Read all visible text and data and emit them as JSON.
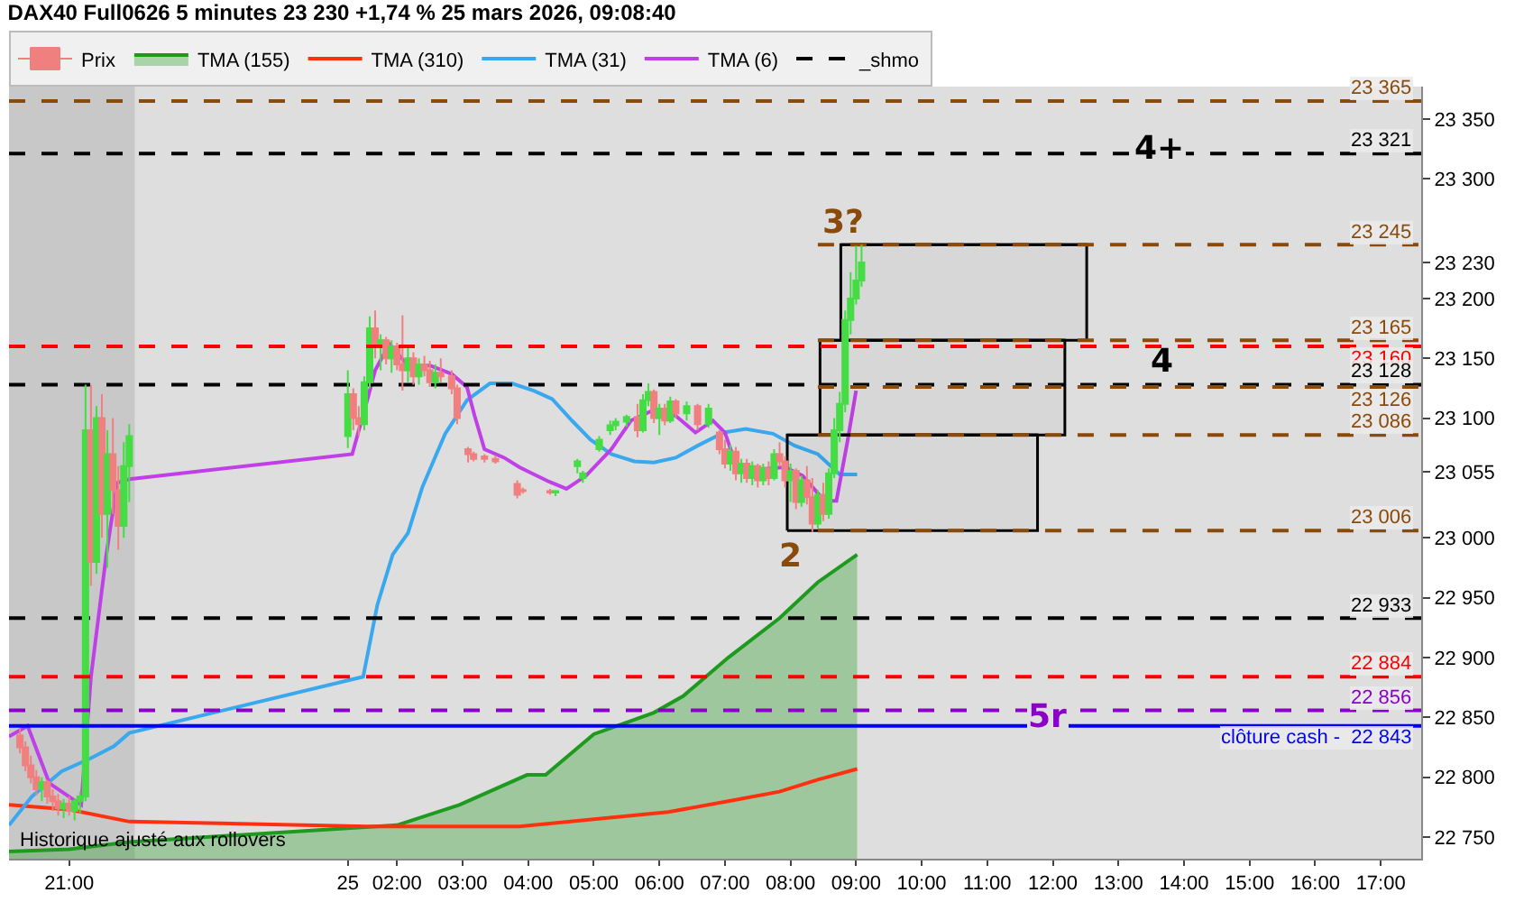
{
  "chart_data": {
    "type": "candlestick",
    "title": "DAX40 Full0626 5 minutes 23 230 +1,74 % 25 mars 2026, 09:08:40",
    "xlim": [
      "2026-03-24T20:05",
      "2026-03-25T17:37"
    ],
    "xticks": [
      {
        "value": "2026-03-24T21:00",
        "label": "21:00"
      },
      {
        "value": "2026-03-25T01:15",
        "label": "25"
      },
      {
        "value": "2026-03-25T02:00",
        "label": "02:00"
      },
      {
        "value": "2026-03-25T03:00",
        "label": "03:00"
      },
      {
        "value": "2026-03-25T04:00",
        "label": "04:00"
      },
      {
        "value": "2026-03-25T05:00",
        "label": "05:00"
      },
      {
        "value": "2026-03-25T06:00",
        "label": "06:00"
      },
      {
        "value": "2026-03-25T07:00",
        "label": "07:00"
      },
      {
        "value": "2026-03-25T08:00",
        "label": "08:00"
      },
      {
        "value": "2026-03-25T09:00",
        "label": "09:00"
      },
      {
        "value": "2026-03-25T10:00",
        "label": "10:00"
      },
      {
        "value": "2026-03-25T11:00",
        "label": "11:00"
      },
      {
        "value": "2026-03-25T12:00",
        "label": "12:00"
      },
      {
        "value": "2026-03-25T13:00",
        "label": "13:00"
      },
      {
        "value": "2026-03-25T14:00",
        "label": "14:00"
      },
      {
        "value": "2026-03-25T15:00",
        "label": "15:00"
      },
      {
        "value": "2026-03-25T16:00",
        "label": "16:00"
      },
      {
        "value": "2026-03-25T17:00",
        "label": "17:00"
      }
    ],
    "ylim": [
      22732,
      23377
    ],
    "yticks": [
      {
        "value": 22750,
        "label": "22 750"
      },
      {
        "value": 22800,
        "label": "22 800"
      },
      {
        "value": 22850,
        "label": "22 850"
      },
      {
        "value": 22900,
        "label": "22 900"
      },
      {
        "value": 22950,
        "label": "22 950"
      },
      {
        "value": 23000,
        "label": "23 000"
      },
      {
        "value": 23055,
        "label": "23 055"
      },
      {
        "value": 23100,
        "label": "23 100"
      },
      {
        "value": 23150,
        "label": "23 150"
      },
      {
        "value": 23200,
        "label": "23 200"
      },
      {
        "value": 23230,
        "label": "23 230"
      },
      {
        "value": 23300,
        "label": "23 300"
      },
      {
        "value": 23350,
        "label": "23 350"
      }
    ],
    "grid": false,
    "legend": "top left",
    "series": [
      {
        "name": "Prix",
        "type": "candlestick",
        "colors": [
          "#f08080",
          "#f08080",
          "#f08080",
          "#f08080",
          "#44dd44",
          "#f08080",
          "#f08080",
          "#f08080",
          "#44dd44",
          "#f08080",
          "#44dd44",
          "#44dd44",
          "#44dd44",
          "#f08080",
          "#44dd44",
          "#f08080",
          "#44dd44",
          "#f08080",
          "#f08080",
          "#44dd44",
          "#44dd44",
          "#44dd44",
          "#f08080",
          "#f08080",
          "#44dd44",
          "#44dd44",
          "#f08080",
          "#44dd44",
          "#f08080",
          "#44dd44",
          "#f08080",
          "#f08080",
          "#44dd44",
          "#f08080",
          "#44dd44",
          "#f08080",
          "#f08080",
          "#44dd44",
          "#f08080",
          "#f08080",
          "#f08080",
          "#f08080",
          "#f08080",
          "#f08080",
          "#f08080",
          "#f08080",
          "#f08080",
          "#f08080",
          "#44dd44",
          "#44dd44",
          "#44dd44",
          "#44dd44",
          "#44dd44",
          "#44dd44",
          "#44dd44",
          "#f08080",
          "#44dd44",
          "#44dd44",
          "#f08080",
          "#44dd44",
          "#f08080",
          "#44dd44",
          "#f08080",
          "#44dd44",
          "#f08080",
          "#44dd44",
          "#f08080",
          "#f08080",
          "#44dd44",
          "#f08080",
          "#44dd44",
          "#f08080",
          "#44dd44",
          "#f08080",
          "#44dd44",
          "#f08080",
          "#44dd44",
          "#f08080",
          "#f08080",
          "#44dd44",
          "#f08080",
          "#44dd44",
          "#f08080",
          "#f08080",
          "#44dd44",
          "#f08080",
          "#44dd44",
          "#44dd44",
          "#44dd44",
          "#44dd44",
          "#44dd44",
          "#44dd44",
          "#44dd44"
        ],
        "x": [
          "2026-03-24T20:15",
          "2026-03-24T20:20",
          "2026-03-24T20:25",
          "2026-03-24T20:30",
          "2026-03-24T20:35",
          "2026-03-24T20:40",
          "2026-03-24T20:45",
          "2026-03-24T20:50",
          "2026-03-24T20:55",
          "2026-03-24T21:00",
          "2026-03-24T21:05",
          "2026-03-24T21:10",
          "2026-03-24T21:15",
          "2026-03-24T21:20",
          "2026-03-24T21:25",
          "2026-03-24T21:30",
          "2026-03-24T21:35",
          "2026-03-24T21:40",
          "2026-03-24T21:45",
          "2026-03-24T21:50",
          "2026-03-24T21:55",
          "2026-03-25T01:15",
          "2026-03-25T01:20",
          "2026-03-25T01:25",
          "2026-03-25T01:30",
          "2026-03-25T01:35",
          "2026-03-25T01:40",
          "2026-03-25T01:45",
          "2026-03-25T01:50",
          "2026-03-25T01:55",
          "2026-03-25T02:00",
          "2026-03-25T02:05",
          "2026-03-25T02:10",
          "2026-03-25T02:15",
          "2026-03-25T02:20",
          "2026-03-25T02:25",
          "2026-03-25T02:30",
          "2026-03-25T02:35",
          "2026-03-25T02:40",
          "2026-03-25T02:50",
          "2026-03-25T02:55",
          "2026-03-25T03:05",
          "2026-03-25T03:10",
          "2026-03-25T03:20",
          "2026-03-25T03:30",
          "2026-03-25T03:50",
          "2026-03-25T03:55",
          "2026-03-25T04:20",
          "2026-03-25T04:25",
          "2026-03-25T04:45",
          "2026-03-25T04:50",
          "2026-03-25T05:05",
          "2026-03-25T05:15",
          "2026-03-25T05:20",
          "2026-03-25T05:30",
          "2026-03-25T05:40",
          "2026-03-25T05:45",
          "2026-03-25T05:50",
          "2026-03-25T05:55",
          "2026-03-25T06:00",
          "2026-03-25T06:05",
          "2026-03-25T06:10",
          "2026-03-25T06:15",
          "2026-03-25T06:25",
          "2026-03-25T06:35",
          "2026-03-25T06:45",
          "2026-03-25T06:55",
          "2026-03-25T07:00",
          "2026-03-25T07:05",
          "2026-03-25T07:10",
          "2026-03-25T07:15",
          "2026-03-25T07:20",
          "2026-03-25T07:25",
          "2026-03-25T07:30",
          "2026-03-25T07:35",
          "2026-03-25T07:40",
          "2026-03-25T07:45",
          "2026-03-25T07:50",
          "2026-03-25T07:55",
          "2026-03-25T08:00",
          "2026-03-25T08:05",
          "2026-03-25T08:10",
          "2026-03-25T08:15",
          "2026-03-25T08:20",
          "2026-03-25T08:25",
          "2026-03-25T08:30",
          "2026-03-25T08:35",
          "2026-03-25T08:40",
          "2026-03-25T08:45",
          "2026-03-25T08:50",
          "2026-03-25T08:55",
          "2026-03-25T09:00",
          "2026-03-25T09:05"
        ],
        "ohlc": [
          [
            22835,
            22842,
            22820,
            22825
          ],
          [
            22825,
            22830,
            22805,
            22810
          ],
          [
            22810,
            22818,
            22795,
            22800
          ],
          [
            22800,
            22806,
            22785,
            22790
          ],
          [
            22790,
            22800,
            22780,
            22796
          ],
          [
            22796,
            22798,
            22778,
            22784
          ],
          [
            22784,
            22790,
            22772,
            22780
          ],
          [
            22780,
            22786,
            22768,
            22774
          ],
          [
            22774,
            22782,
            22766,
            22778
          ],
          [
            22778,
            22784,
            22768,
            22772
          ],
          [
            22772,
            22782,
            22764,
            22780
          ],
          [
            22780,
            22788,
            22770,
            22784
          ],
          [
            22784,
            23128,
            22780,
            23090
          ],
          [
            23090,
            23128,
            22960,
            22980
          ],
          [
            22980,
            23110,
            22970,
            23100
          ],
          [
            23100,
            23120,
            23000,
            23020
          ],
          [
            23020,
            23090,
            22975,
            23070
          ],
          [
            23070,
            23100,
            23020,
            23040
          ],
          [
            23040,
            23060,
            22990,
            23010
          ],
          [
            23010,
            23080,
            23000,
            23060
          ],
          [
            23060,
            23095,
            23030,
            23085
          ],
          [
            23085,
            23140,
            23075,
            23120
          ],
          [
            23120,
            23125,
            23090,
            23100
          ],
          [
            23100,
            23110,
            23085,
            23095
          ],
          [
            23095,
            23135,
            23090,
            23130
          ],
          [
            23130,
            23185,
            23125,
            23175
          ],
          [
            23175,
            23190,
            23150,
            23160
          ],
          [
            23160,
            23170,
            23140,
            23165
          ],
          [
            23165,
            23168,
            23145,
            23150
          ],
          [
            23150,
            23165,
            23138,
            23160
          ],
          [
            23160,
            23163,
            23140,
            23145
          ],
          [
            23145,
            23186,
            23123,
            23140
          ],
          [
            23140,
            23160,
            23130,
            23150
          ],
          [
            23150,
            23155,
            23128,
            23135
          ],
          [
            23135,
            23150,
            23128,
            23145
          ],
          [
            23145,
            23152,
            23135,
            23140
          ],
          [
            23140,
            23148,
            23126,
            23130
          ],
          [
            23130,
            23145,
            23125,
            23138
          ],
          [
            23138,
            23150,
            23130,
            23135
          ],
          [
            23135,
            23140,
            23120,
            23125
          ],
          [
            23125,
            23128,
            23095,
            23100
          ],
          [
            23074,
            23076,
            23063,
            23070
          ],
          [
            23070,
            23072,
            23064,
            23066
          ],
          [
            23068,
            23070,
            23063,
            23066
          ],
          [
            23066,
            23069,
            23062,
            23064
          ],
          [
            23045,
            23048,
            23033,
            23036
          ],
          [
            23040,
            23042,
            23037,
            23039
          ],
          [
            23039,
            23041,
            23036,
            23038
          ],
          [
            23038,
            23040,
            23035,
            23039
          ],
          [
            23060,
            23066,
            23054,
            23064
          ],
          [
            23050,
            23056,
            23046,
            23054
          ],
          [
            23074,
            23085,
            23072,
            23082
          ],
          [
            23090,
            23098,
            23086,
            23094
          ],
          [
            23094,
            23100,
            23090,
            23097
          ],
          [
            23097,
            23103,
            23093,
            23101
          ],
          [
            23101,
            23112,
            23084,
            23090
          ],
          [
            23090,
            23120,
            23088,
            23115
          ],
          [
            23115,
            23129,
            23110,
            23122
          ],
          [
            23122,
            23124,
            23096,
            23100
          ],
          [
            23100,
            23112,
            23086,
            23108
          ],
          [
            23108,
            23112,
            23094,
            23098
          ],
          [
            23098,
            23118,
            23096,
            23114
          ],
          [
            23114,
            23116,
            23100,
            23104
          ],
          [
            23104,
            23114,
            23098,
            23110
          ],
          [
            23110,
            23112,
            23090,
            23095
          ],
          [
            23095,
            23112,
            23092,
            23108
          ],
          [
            23088,
            23090,
            23070,
            23074
          ],
          [
            23074,
            23082,
            23058,
            23062
          ],
          [
            23062,
            23078,
            23056,
            23072
          ],
          [
            23072,
            23076,
            23048,
            23054
          ],
          [
            23054,
            23066,
            23046,
            23062
          ],
          [
            23062,
            23066,
            23046,
            23050
          ],
          [
            23050,
            23064,
            23044,
            23060
          ],
          [
            23060,
            23062,
            23042,
            23048
          ],
          [
            23048,
            23062,
            23044,
            23058
          ],
          [
            23058,
            23064,
            23044,
            23050
          ],
          [
            23050,
            23074,
            23048,
            23070
          ],
          [
            23070,
            23080,
            23060,
            23064
          ],
          [
            23064,
            23068,
            23042,
            23048
          ],
          [
            23048,
            23062,
            23030,
            23056
          ],
          [
            23056,
            23058,
            23024,
            23030
          ],
          [
            23030,
            23052,
            23026,
            23048
          ],
          [
            23048,
            23060,
            23028,
            23034
          ],
          [
            23034,
            23050,
            23005,
            23012
          ],
          [
            23012,
            23040,
            23008,
            23036
          ],
          [
            23036,
            23046,
            23014,
            23020
          ],
          [
            23020,
            23058,
            23016,
            23054
          ],
          [
            23054,
            23100,
            23050,
            23090
          ],
          [
            23090,
            23122,
            23080,
            23112
          ],
          [
            23112,
            23190,
            23105,
            23182
          ],
          [
            23182,
            23222,
            23170,
            23200
          ],
          [
            23200,
            23244,
            23195,
            23215
          ],
          [
            23215,
            23245,
            23210,
            23230
          ]
        ]
      },
      {
        "name": "TMA (155)",
        "type": "area",
        "color": "#1e9a1e",
        "x": [
          "2026-03-24T20:05",
          "2026-03-24T21:00",
          "2026-03-24T21:55",
          "2026-03-25T02:00",
          "2026-03-25T02:57",
          "2026-03-25T03:59",
          "2026-03-25T04:16",
          "2026-03-25T05:00",
          "2026-03-25T05:55",
          "2026-03-25T06:22",
          "2026-03-25T07:03",
          "2026-03-25T07:50",
          "2026-03-25T08:25",
          "2026-03-25T09:01"
        ],
        "values": [
          22738,
          22740,
          22746,
          22760,
          22777,
          22802,
          22802,
          22836,
          22854,
          22868,
          22900,
          22933,
          22963,
          22986
        ]
      },
      {
        "name": "TMA (310)",
        "type": "line",
        "color": "#ff3010",
        "x": [
          "2026-03-24T20:05",
          "2026-03-24T21:00",
          "2026-03-24T21:55",
          "2026-03-25T01:33",
          "2026-03-25T02:57",
          "2026-03-25T03:52",
          "2026-03-25T05:00",
          "2026-03-25T06:08",
          "2026-03-25T07:03",
          "2026-03-25T07:50",
          "2026-03-25T08:25",
          "2026-03-25T09:01"
        ],
        "values": [
          22777,
          22773,
          22763,
          22759,
          22759,
          22759,
          22765,
          22771,
          22780,
          22788,
          22798,
          22807
        ]
      },
      {
        "name": "TMA (31)",
        "type": "line",
        "color": "#3aa8ee",
        "x": [
          "2026-03-24T20:05",
          "2026-03-24T20:26",
          "2026-03-24T20:53",
          "2026-03-24T21:20",
          "2026-03-24T21:41",
          "2026-03-24T21:55",
          "2026-03-25T01:29",
          "2026-03-25T01:42",
          "2026-03-25T01:56",
          "2026-03-25T02:10",
          "2026-03-25T02:23",
          "2026-03-25T02:44",
          "2026-03-25T03:04",
          "2026-03-25T03:25",
          "2026-03-25T03:45",
          "2026-03-25T04:05",
          "2026-03-25T04:22",
          "2026-03-25T04:40",
          "2026-03-25T04:57",
          "2026-03-25T05:16",
          "2026-03-25T05:37",
          "2026-03-25T05:55",
          "2026-03-25T06:15",
          "2026-03-25T06:35",
          "2026-03-25T06:59",
          "2026-03-25T07:19",
          "2026-03-25T07:44",
          "2026-03-25T08:04",
          "2026-03-25T08:25",
          "2026-03-25T08:45",
          "2026-03-25T09:01"
        ],
        "values": [
          22760,
          22784,
          22805,
          22816,
          22826,
          22837,
          22884,
          22944,
          22986,
          23004,
          23042,
          23087,
          23115,
          23129,
          23129,
          23123,
          23116,
          23098,
          23082,
          23070,
          23064,
          23063,
          23067,
          23077,
          23088,
          23091,
          23087,
          23077,
          23070,
          23053,
          23053
        ]
      },
      {
        "name": "TMA (6)",
        "type": "line",
        "color": "#c040e8",
        "x": [
          "2026-03-24T20:05",
          "2026-03-24T20:22",
          "2026-03-24T20:42",
          "2026-03-24T21:11",
          "2026-03-24T21:20",
          "2026-03-24T21:34",
          "2026-03-24T21:44",
          "2026-03-24T21:55",
          "2026-03-25T01:19",
          "2026-03-25T01:33",
          "2026-03-25T01:40",
          "2026-03-25T01:53",
          "2026-03-25T02:10",
          "2026-03-25T02:30",
          "2026-03-25T02:50",
          "2026-03-25T03:04",
          "2026-03-25T03:11",
          "2026-03-25T03:20",
          "2026-03-25T03:38",
          "2026-03-25T03:52",
          "2026-03-25T04:19",
          "2026-03-25T04:35",
          "2026-03-25T04:53",
          "2026-03-25T05:16",
          "2026-03-25T05:34",
          "2026-03-25T05:55",
          "2026-03-25T06:15",
          "2026-03-25T06:33",
          "2026-03-25T06:49",
          "2026-03-25T07:00",
          "2026-03-25T07:12",
          "2026-03-25T07:55",
          "2026-03-25T08:11",
          "2026-03-25T08:31",
          "2026-03-25T08:42",
          "2026-03-25T08:52",
          "2026-03-25T09:00"
        ],
        "values": [
          22834,
          22843,
          22795,
          22777,
          22884,
          22986,
          23046,
          23049,
          23070,
          23116,
          23140,
          23162,
          23144,
          23144,
          23137,
          23126,
          23102,
          23074,
          23067,
          23059,
          23047,
          23041,
          23052,
          23074,
          23098,
          23107,
          23102,
          23088,
          23098,
          23088,
          23056,
          23059,
          23052,
          23031,
          23031,
          23080,
          23123
        ]
      },
      {
        "name": "_shmo",
        "type": "line",
        "color": "#000000",
        "line_style": "dashed",
        "x": [
          "2026-03-24T20:05",
          "2026-03-25T17:37"
        ],
        "values": [
          23321,
          23321
        ],
        "value_labels": [
          null,
          "23 321"
        ]
      },
      {
        "type": "line",
        "color": "#000000",
        "line_style": "dashed",
        "x": [
          "2026-03-24T20:05",
          "2026-03-25T17:37"
        ],
        "values": [
          23128,
          23128
        ],
        "value_labels": [
          null,
          "23 128"
        ]
      },
      {
        "type": "line",
        "color": "#000000",
        "line_style": "dashed",
        "x": [
          "2026-03-24T20:05",
          "2026-03-25T17:37"
        ],
        "values": [
          22933,
          22933
        ],
        "value_labels": [
          null,
          "22 933"
        ]
      },
      {
        "type": "line",
        "color": "#000000",
        "x": [
          "2026-03-25T07:57",
          "2026-03-25T11:46"
        ],
        "values": [
          23086,
          23086
        ],
        "lower": [
          23006,
          23006
        ],
        "upper": [
          23086,
          23086
        ]
      },
      {
        "type": "line",
        "color": "#000000",
        "x": [
          "2026-03-25T08:27",
          "2026-03-25T12:11"
        ],
        "values": [
          23165,
          23165
        ],
        "lower": [
          23086,
          23086
        ],
        "upper": [
          23165,
          23165
        ]
      },
      {
        "type": "line",
        "color": "#000000",
        "x": [
          "2026-03-25T08:46",
          "2026-03-25T12:31"
        ],
        "values": [
          23245,
          23245
        ],
        "lower": [
          23165,
          23165
        ],
        "upper": [
          23245,
          23245
        ]
      },
      {
        "type": "line",
        "color": "#8a4a0a",
        "line_style": "dashed",
        "x": [
          "2026-03-25T08:25",
          "2026-03-25T17:37"
        ],
        "values": [
          23245,
          23245
        ],
        "value_labels": [
          null,
          "23 245"
        ]
      },
      {
        "type": "line",
        "color": "#8a4a0a",
        "line_style": "dashed",
        "x": [
          "2026-03-25T08:25",
          "2026-03-25T17:37"
        ],
        "values": [
          23165,
          23165
        ],
        "value_labels": [
          null,
          "23 165"
        ]
      },
      {
        "type": "line",
        "color": "#8a4a0a",
        "line_style": "dashed",
        "x": [
          "2026-03-25T08:25",
          "2026-03-25T17:37"
        ],
        "values": [
          23126,
          23126
        ],
        "value_labels": [
          null,
          "23 126"
        ]
      },
      {
        "type": "line",
        "color": "#8a4a0a",
        "line_style": "dashed",
        "x": [
          "2026-03-25T08:25",
          "2026-03-25T17:37"
        ],
        "values": [
          23086,
          23086
        ],
        "value_labels": [
          null,
          "23 086"
        ]
      },
      {
        "type": "line",
        "color": "#8a4a0a",
        "line_style": "dashed",
        "x": [
          "2026-03-25T08:25",
          "2026-03-25T17:37"
        ],
        "values": [
          23006,
          23006
        ],
        "value_labels": [
          null,
          "23 006"
        ]
      }
    ],
    "ref_lines": [
      {
        "axis": "y",
        "value": 23365,
        "label": "23 365",
        "color": "#8a4a0a",
        "line_style": "dashed"
      },
      {
        "axis": "y",
        "value": 23160,
        "label": "23 160",
        "color": "#ff0000",
        "line_style": "dashed"
      },
      {
        "axis": "y",
        "value": 22884,
        "label": "22 884",
        "color": "#ff0000",
        "line_style": "dashed"
      },
      {
        "axis": "y",
        "value": 22856,
        "label": "22 856",
        "color": "#8a00c8",
        "line_style": "dashed"
      },
      {
        "axis": "y",
        "value": 22843,
        "label": "clôture cash -  22 843",
        "color": "#0000ff",
        "line_style": "solid"
      }
    ],
    "bands": [
      {
        "axis": "x",
        "from": "2026-03-24T20:05",
        "to": "2026-03-24T22:00",
        "color": "#c8c8c8"
      }
    ],
    "annotations": [
      {
        "text": "2",
        "x": "2026-03-25T08:01",
        "y": 23003
      },
      {
        "text": "3?",
        "x": "2026-03-25T08:48",
        "y": 23245
      },
      {
        "text": "4+",
        "x": "2026-03-25T13:38",
        "y": 23325
      },
      {
        "text": "4",
        "x": "2026-03-25T13:41",
        "y": 23128
      },
      {
        "text": "5r",
        "x": "2026-03-25T11:56",
        "y": 22850
      },
      "Historique ajusté aux rollovers"
    ]
  }
}
